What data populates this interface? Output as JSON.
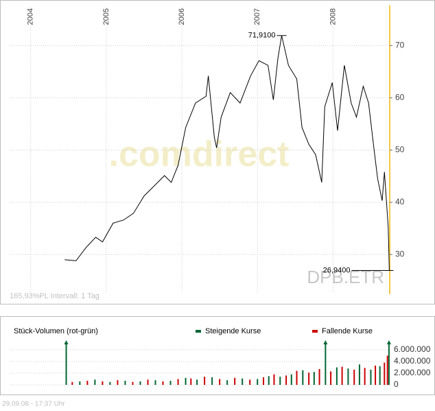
{
  "chart_data": [
    {
      "type": "line",
      "watermark": ".comdirect",
      "symbol": "DPB.ETR",
      "info": "165,93%PL   Intervall: 1 Tag",
      "xlim": [
        2003.73,
        2008.75
      ],
      "xticks": [
        2004,
        2005,
        2006,
        2007,
        2008
      ],
      "ylim": [
        22.8,
        77.4
      ],
      "yticks": [
        30,
        40,
        50,
        60,
        70
      ],
      "grid": true,
      "series": [
        {
          "color": "#000000",
          "x": [
            2004.45,
            2004.6,
            2004.73,
            2004.86,
            2004.95,
            2005.09,
            2005.23,
            2005.36,
            2005.5,
            2005.64,
            2005.77,
            2005.86,
            2005.95,
            2006.05,
            2006.18,
            2006.32,
            2006.35,
            2006.43,
            2006.46,
            2006.52,
            2006.64,
            2006.77,
            2006.91,
            2007.02,
            2007.14,
            2007.21,
            2007.27,
            2007.32,
            2007.41,
            2007.52,
            2007.59,
            2007.68,
            2007.77,
            2007.85,
            2007.89,
            2007.99,
            2008.06,
            2008.15,
            2008.24,
            2008.31,
            2008.4,
            2008.47,
            2008.54,
            2008.59,
            2008.65,
            2008.68,
            2008.73,
            2008.745
          ],
          "values": [
            29,
            28.8,
            31.3,
            33.3,
            32.4,
            36,
            36.6,
            37.9,
            41.2,
            43.2,
            45.1,
            43.8,
            47.1,
            54.3,
            59,
            60.3,
            64.2,
            52.4,
            50.4,
            56.3,
            61,
            59,
            64.2,
            67.1,
            66.2,
            59.6,
            67.5,
            71.91,
            66.2,
            63.6,
            54.3,
            51.1,
            49.1,
            43.8,
            58.3,
            62.9,
            53.7,
            66.2,
            59,
            56.3,
            62.2,
            59,
            50.4,
            44.5,
            40.3,
            45.8,
            35.3,
            26.94
          ]
        }
      ],
      "annotations": [
        {
          "label": "71,9100",
          "x": 2007.32,
          "value": 71.91
        },
        {
          "label": "26,9400",
          "x": 2008.745,
          "value": 26.94
        }
      ]
    },
    {
      "type": "bar",
      "title": "Stück-Volumen (rot-grün)",
      "xlim": [
        2003.73,
        2008.75
      ],
      "ylim": [
        0,
        7400000
      ],
      "yticks": [
        {
          "value": 6000000,
          "label": "6.000.000"
        },
        {
          "value": 4000000,
          "label": "4.000.000"
        },
        {
          "value": 2000000,
          "label": "2.000.000"
        },
        0
      ],
      "series": [
        {
          "name": "Steigende Kurse",
          "color": "#006633",
          "x": [
            2004.47,
            2004.65,
            2004.85,
            2005.05,
            2005.25,
            2005.45,
            2005.65,
            2005.85,
            2006.05,
            2006.2,
            2006.4,
            2006.6,
            2006.8,
            2007.0,
            2007.15,
            2007.3,
            2007.45,
            2007.6,
            2007.75,
            2007.9,
            2008.05,
            2008.2,
            2008.35,
            2008.5,
            2008.62,
            2008.74
          ],
          "values": [
            7400000,
            600000,
            900000,
            500000,
            700000,
            600000,
            800000,
            700000,
            1200000,
            900000,
            1300000,
            800000,
            1100000,
            1000000,
            1500000,
            1400000,
            1800000,
            2500000,
            2200000,
            7400000,
            3000000,
            2800000,
            3500000,
            2600000,
            3200000,
            7400000
          ]
        },
        {
          "name": "Fallende Kurse",
          "color": "#cc0000",
          "x": [
            2004.55,
            2004.75,
            2004.95,
            2005.15,
            2005.35,
            2005.55,
            2005.75,
            2005.95,
            2006.12,
            2006.3,
            2006.5,
            2006.7,
            2006.9,
            2007.08,
            2007.22,
            2007.38,
            2007.52,
            2007.68,
            2007.82,
            2007.97,
            2008.12,
            2008.28,
            2008.42,
            2008.56,
            2008.68,
            2008.72
          ],
          "values": [
            500000,
            700000,
            600000,
            800000,
            500000,
            900000,
            600000,
            1000000,
            1100000,
            1400000,
            1000000,
            1200000,
            900000,
            1300000,
            1800000,
            1600000,
            2400000,
            2100000,
            2700000,
            2300000,
            3100000,
            2600000,
            2900000,
            3300000,
            3800000,
            5000000
          ]
        }
      ]
    }
  ],
  "footer": "29.09.08 - 17:37 Uhr"
}
